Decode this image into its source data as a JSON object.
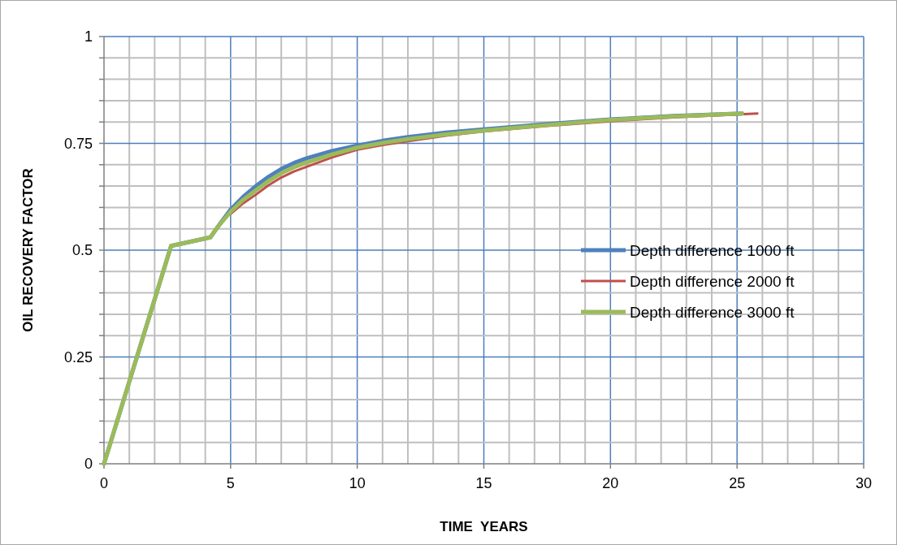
{
  "chart_data": {
    "type": "line",
    "xlabel": "TIME  YEARS",
    "ylabel": "OIL RECOVERY FACTOR",
    "xlim": [
      0,
      30
    ],
    "ylim": [
      0,
      1
    ],
    "xticks": [
      0,
      {
        "value": 1,
        "label": null
      },
      {
        "value": 2,
        "label": null
      },
      {
        "value": 3,
        "label": null
      },
      {
        "value": 4,
        "label": null
      },
      5,
      {
        "value": 6,
        "label": null
      },
      {
        "value": 7,
        "label": null
      },
      {
        "value": 8,
        "label": null
      },
      {
        "value": 9,
        "label": null
      },
      10,
      {
        "value": 11,
        "label": null
      },
      {
        "value": 12,
        "label": null
      },
      {
        "value": 13,
        "label": null
      },
      {
        "value": 14,
        "label": null
      },
      15,
      {
        "value": 16,
        "label": null
      },
      {
        "value": 17,
        "label": null
      },
      {
        "value": 18,
        "label": null
      },
      {
        "value": 19,
        "label": null
      },
      20,
      {
        "value": 21,
        "label": null
      },
      {
        "value": 22,
        "label": null
      },
      {
        "value": 23,
        "label": null
      },
      {
        "value": 24,
        "label": null
      },
      25,
      {
        "value": 26,
        "label": null
      },
      {
        "value": 27,
        "label": null
      },
      {
        "value": 28,
        "label": null
      },
      {
        "value": 29,
        "label": null
      },
      30
    ],
    "yticks": [
      0,
      {
        "value": 0.05,
        "label": null
      },
      {
        "value": 0.1,
        "label": null
      },
      {
        "value": 0.15,
        "label": null
      },
      {
        "value": 0.2,
        "label": null
      },
      0.25,
      {
        "value": 0.3,
        "label": null
      },
      {
        "value": 0.35,
        "label": null
      },
      {
        "value": 0.4,
        "label": null
      },
      {
        "value": 0.45,
        "label": null
      },
      0.5,
      {
        "value": 0.55,
        "label": null
      },
      {
        "value": 0.6,
        "label": null
      },
      {
        "value": 0.65,
        "label": null
      },
      {
        "value": 0.7,
        "label": null
      },
      0.75,
      {
        "value": 0.8,
        "label": null
      },
      {
        "value": 0.85,
        "label": null
      },
      {
        "value": 0.9,
        "label": null
      },
      {
        "value": 0.95,
        "label": null
      },
      1
    ],
    "grid": true,
    "legend": "right",
    "marker": "none",
    "line_style": "solid",
    "series": [
      {
        "name": "Depth difference 1000 ft",
        "color": "#4f81bd",
        "x": [
          0,
          2.65,
          4.2,
          4.5,
          5,
          5.5,
          6,
          6.5,
          7,
          7.5,
          8,
          9,
          10,
          11,
          12,
          13.5,
          15,
          17.5,
          20,
          22.5,
          25.2
        ],
        "values": [
          0,
          0.51,
          0.53,
          0.555,
          0.595,
          0.625,
          0.65,
          0.672,
          0.69,
          0.704,
          0.715,
          0.732,
          0.745,
          0.756,
          0.765,
          0.775,
          0.783,
          0.795,
          0.806,
          0.814,
          0.82
        ]
      },
      {
        "name": "Depth difference 2000 ft",
        "color": "#c0504d",
        "x": [
          5,
          5.5,
          6,
          6.5,
          7,
          7.5,
          8,
          9,
          10,
          11,
          12,
          13.5,
          15,
          17.5,
          20,
          22.5,
          25.8
        ],
        "values": [
          0.585,
          0.61,
          0.63,
          0.652,
          0.67,
          0.684,
          0.695,
          0.717,
          0.735,
          0.746,
          0.755,
          0.768,
          0.778,
          0.791,
          0.802,
          0.811,
          0.82
        ]
      },
      {
        "name": "Depth difference 3000 ft",
        "color": "#9bbb59",
        "x": [
          0,
          2.65,
          4.2,
          4.5,
          5,
          5.5,
          6,
          6.5,
          7,
          7.5,
          8,
          9,
          10,
          11,
          12,
          13.5,
          15,
          17.5,
          20,
          22.5,
          25.2
        ],
        "values": [
          0,
          0.51,
          0.53,
          0.555,
          0.59,
          0.618,
          0.64,
          0.662,
          0.68,
          0.694,
          0.705,
          0.724,
          0.74,
          0.751,
          0.76,
          0.771,
          0.78,
          0.793,
          0.805,
          0.813,
          0.82
        ]
      }
    ]
  }
}
